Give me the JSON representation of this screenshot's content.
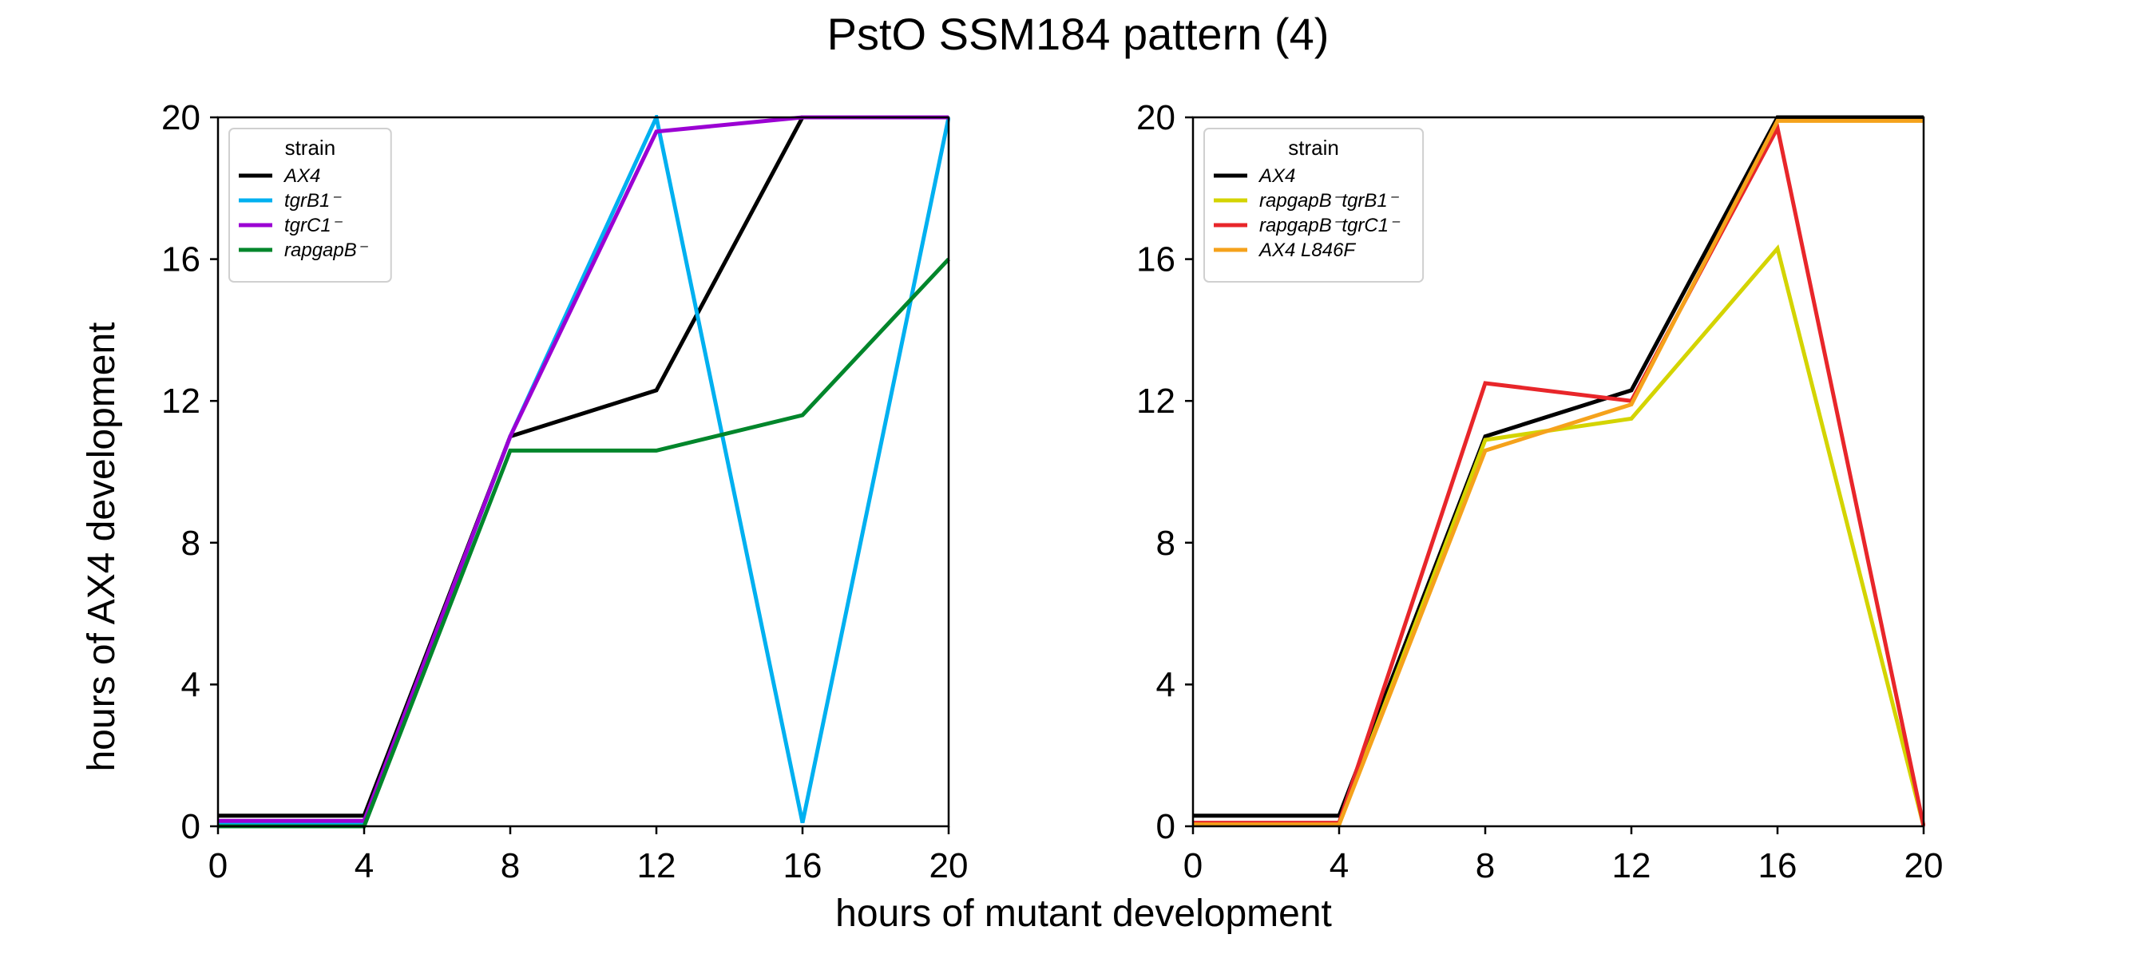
{
  "figure": {
    "title": "PstO SSM184 pattern (4)",
    "xlabel": "hours of mutant development",
    "ylabel": "hours of AX4 development"
  },
  "chart_data": [
    {
      "type": "line",
      "panel": "left",
      "xlim": [
        0,
        20
      ],
      "ylim": [
        0,
        20
      ],
      "xticks": [
        0,
        4,
        8,
        12,
        16,
        20
      ],
      "yticks": [
        0,
        4,
        8,
        12,
        16,
        20
      ],
      "grid": false,
      "legend": {
        "title": "strain",
        "placement": "top-left"
      },
      "x": [
        0,
        4,
        8,
        12,
        16,
        20
      ],
      "series": [
        {
          "name": "AX4",
          "color": "#000000",
          "values": [
            0.3,
            0.3,
            11.0,
            12.3,
            20.0,
            20.0
          ]
        },
        {
          "name": "tgrB1⁻",
          "color": "#00b0f0",
          "values": [
            0.1,
            0.1,
            11.0,
            20.0,
            0.1,
            20.0
          ]
        },
        {
          "name": "tgrC1⁻",
          "color": "#9b00d3",
          "values": [
            0.15,
            0.15,
            11.0,
            19.6,
            20.0,
            20.0
          ]
        },
        {
          "name": "rapgapB⁻",
          "color": "#00862b",
          "values": [
            0.0,
            0.0,
            10.6,
            10.6,
            11.6,
            16.0
          ]
        }
      ]
    },
    {
      "type": "line",
      "panel": "right",
      "xlim": [
        0,
        20
      ],
      "ylim": [
        0,
        20
      ],
      "xticks": [
        0,
        4,
        8,
        12,
        16,
        20
      ],
      "yticks": [
        0,
        4,
        8,
        12,
        16,
        20
      ],
      "grid": false,
      "legend": {
        "title": "strain",
        "placement": "top-left"
      },
      "x": [
        0,
        4,
        8,
        12,
        16,
        20
      ],
      "series": [
        {
          "name": "AX4",
          "color": "#000000",
          "values": [
            0.3,
            0.3,
            11.0,
            12.3,
            20.0,
            20.0
          ]
        },
        {
          "name": "rapgapB⁻tgrB1⁻",
          "color": "#d4d400",
          "values": [
            0.05,
            0.05,
            10.9,
            11.5,
            16.3,
            0.0
          ]
        },
        {
          "name": "rapgapB⁻tgrC1⁻",
          "color": "#e8262a",
          "values": [
            0.1,
            0.1,
            12.5,
            12.0,
            19.7,
            0.0
          ]
        },
        {
          "name": "AX4 L846F",
          "color": "#f5a21b",
          "values": [
            0.05,
            0.05,
            10.6,
            11.9,
            19.9,
            19.9
          ]
        }
      ]
    }
  ]
}
